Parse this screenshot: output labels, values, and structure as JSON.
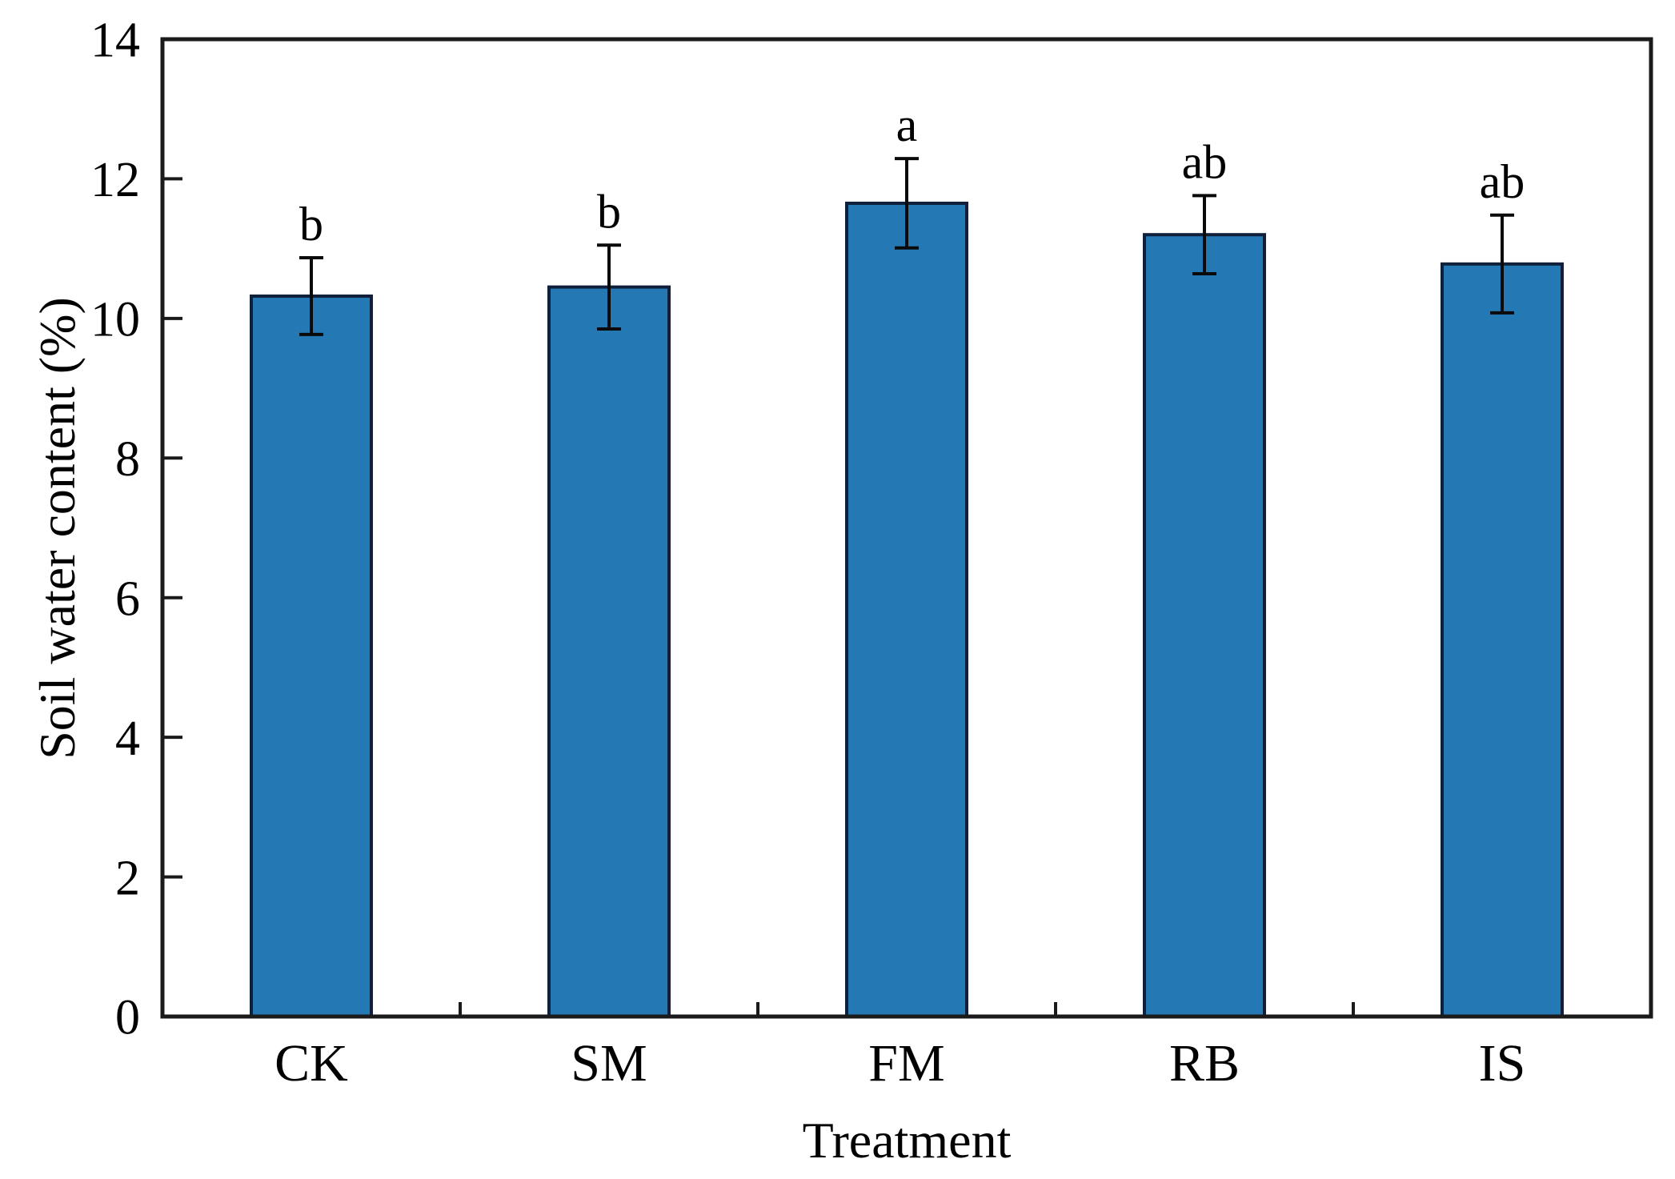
{
  "chart_data": {
    "type": "bar",
    "title": "",
    "xlabel": "Treatment",
    "ylabel": "Soil water content (%)",
    "categories": [
      "CK",
      "SM",
      "FM",
      "RB",
      "IS"
    ],
    "series": [
      {
        "name": "Soil water content",
        "values": [
          10.32,
          10.45,
          11.65,
          11.2,
          10.78
        ],
        "errors": [
          0.55,
          0.6,
          0.64,
          0.56,
          0.7
        ],
        "sig_letters": [
          "b",
          "b",
          "a",
          "ab",
          "ab"
        ]
      }
    ],
    "ylim": [
      0,
      14
    ],
    "yticks": [
      0,
      2,
      4,
      6,
      8,
      10,
      12,
      14
    ],
    "grid": false,
    "legend": "none",
    "colors": {
      "bar_fill": "#2478b4",
      "bar_edge": "#10203a",
      "error_bar": "#0a0a0a",
      "axis": "#1a1a1a",
      "text": "#000000"
    }
  }
}
